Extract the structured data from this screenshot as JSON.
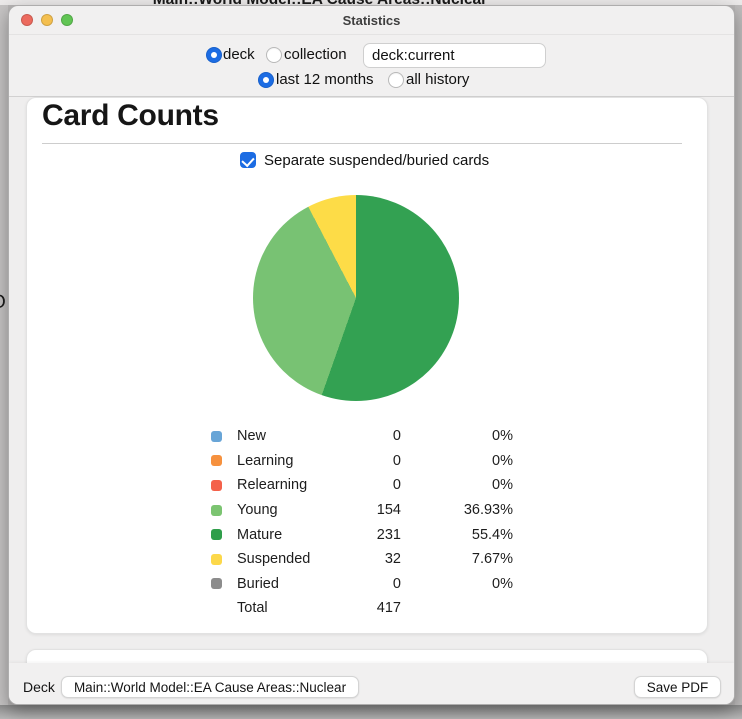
{
  "background_window": {
    "title": "Main::World Model::EA Cause Areas::Nuclear",
    "partial_glyph": "O"
  },
  "window": {
    "title": "Statistics",
    "toolbar": {
      "deck_label": "deck",
      "collection_label": "collection",
      "scope_selected": "deck",
      "search_value": "deck:current",
      "last12_label": "last 12 months",
      "allhistory_label": "all history",
      "range_selected": "last 12 months"
    },
    "card_counts": {
      "title": "Card Counts",
      "checkbox_label": "Separate suspended/buried cards",
      "checkbox_checked": true,
      "chart_data": {
        "type": "pie",
        "title": "Card Counts",
        "total": 417,
        "start_angle_deg": 0,
        "direction": "clockwise",
        "slices": [
          {
            "label": "Mature",
            "value": 231,
            "percent": "55.4%",
            "color": "#33a152"
          },
          {
            "label": "Young",
            "value": 154,
            "percent": "36.93%",
            "color": "#78c273"
          },
          {
            "label": "Suspended",
            "value": 32,
            "percent": "7.67%",
            "color": "#fddc47"
          }
        ]
      },
      "legend": {
        "rows": [
          {
            "name": "New",
            "color": "#68a5d7",
            "count": "0",
            "percent": "0%"
          },
          {
            "name": "Learning",
            "color": "#f6913e",
            "count": "0",
            "percent": "0%"
          },
          {
            "name": "Relearning",
            "color": "#f4614a",
            "count": "0",
            "percent": "0%"
          },
          {
            "name": "Young",
            "color": "#7bc471",
            "count": "154",
            "percent": "36.93%"
          },
          {
            "name": "Mature",
            "color": "#2f9e4a",
            "count": "231",
            "percent": "55.4%"
          },
          {
            "name": "Suspended",
            "color": "#fcd84a",
            "count": "32",
            "percent": "7.67%"
          },
          {
            "name": "Buried",
            "color": "#8c8c8c",
            "count": "0",
            "percent": "0%"
          }
        ],
        "total_row": {
          "name": "Total",
          "count": "417",
          "percent": ""
        }
      }
    },
    "bottom_bar": {
      "deck_label": "Deck",
      "deck_button": "Main::World Model::EA Cause Areas::Nuclear",
      "save_pdf_button": "Save PDF"
    }
  },
  "colors": {
    "accent_blue": "#1c6ce3",
    "traffic_red": "#ec6a5e",
    "traffic_yellow": "#f4bf4f",
    "traffic_green": "#61c554"
  }
}
